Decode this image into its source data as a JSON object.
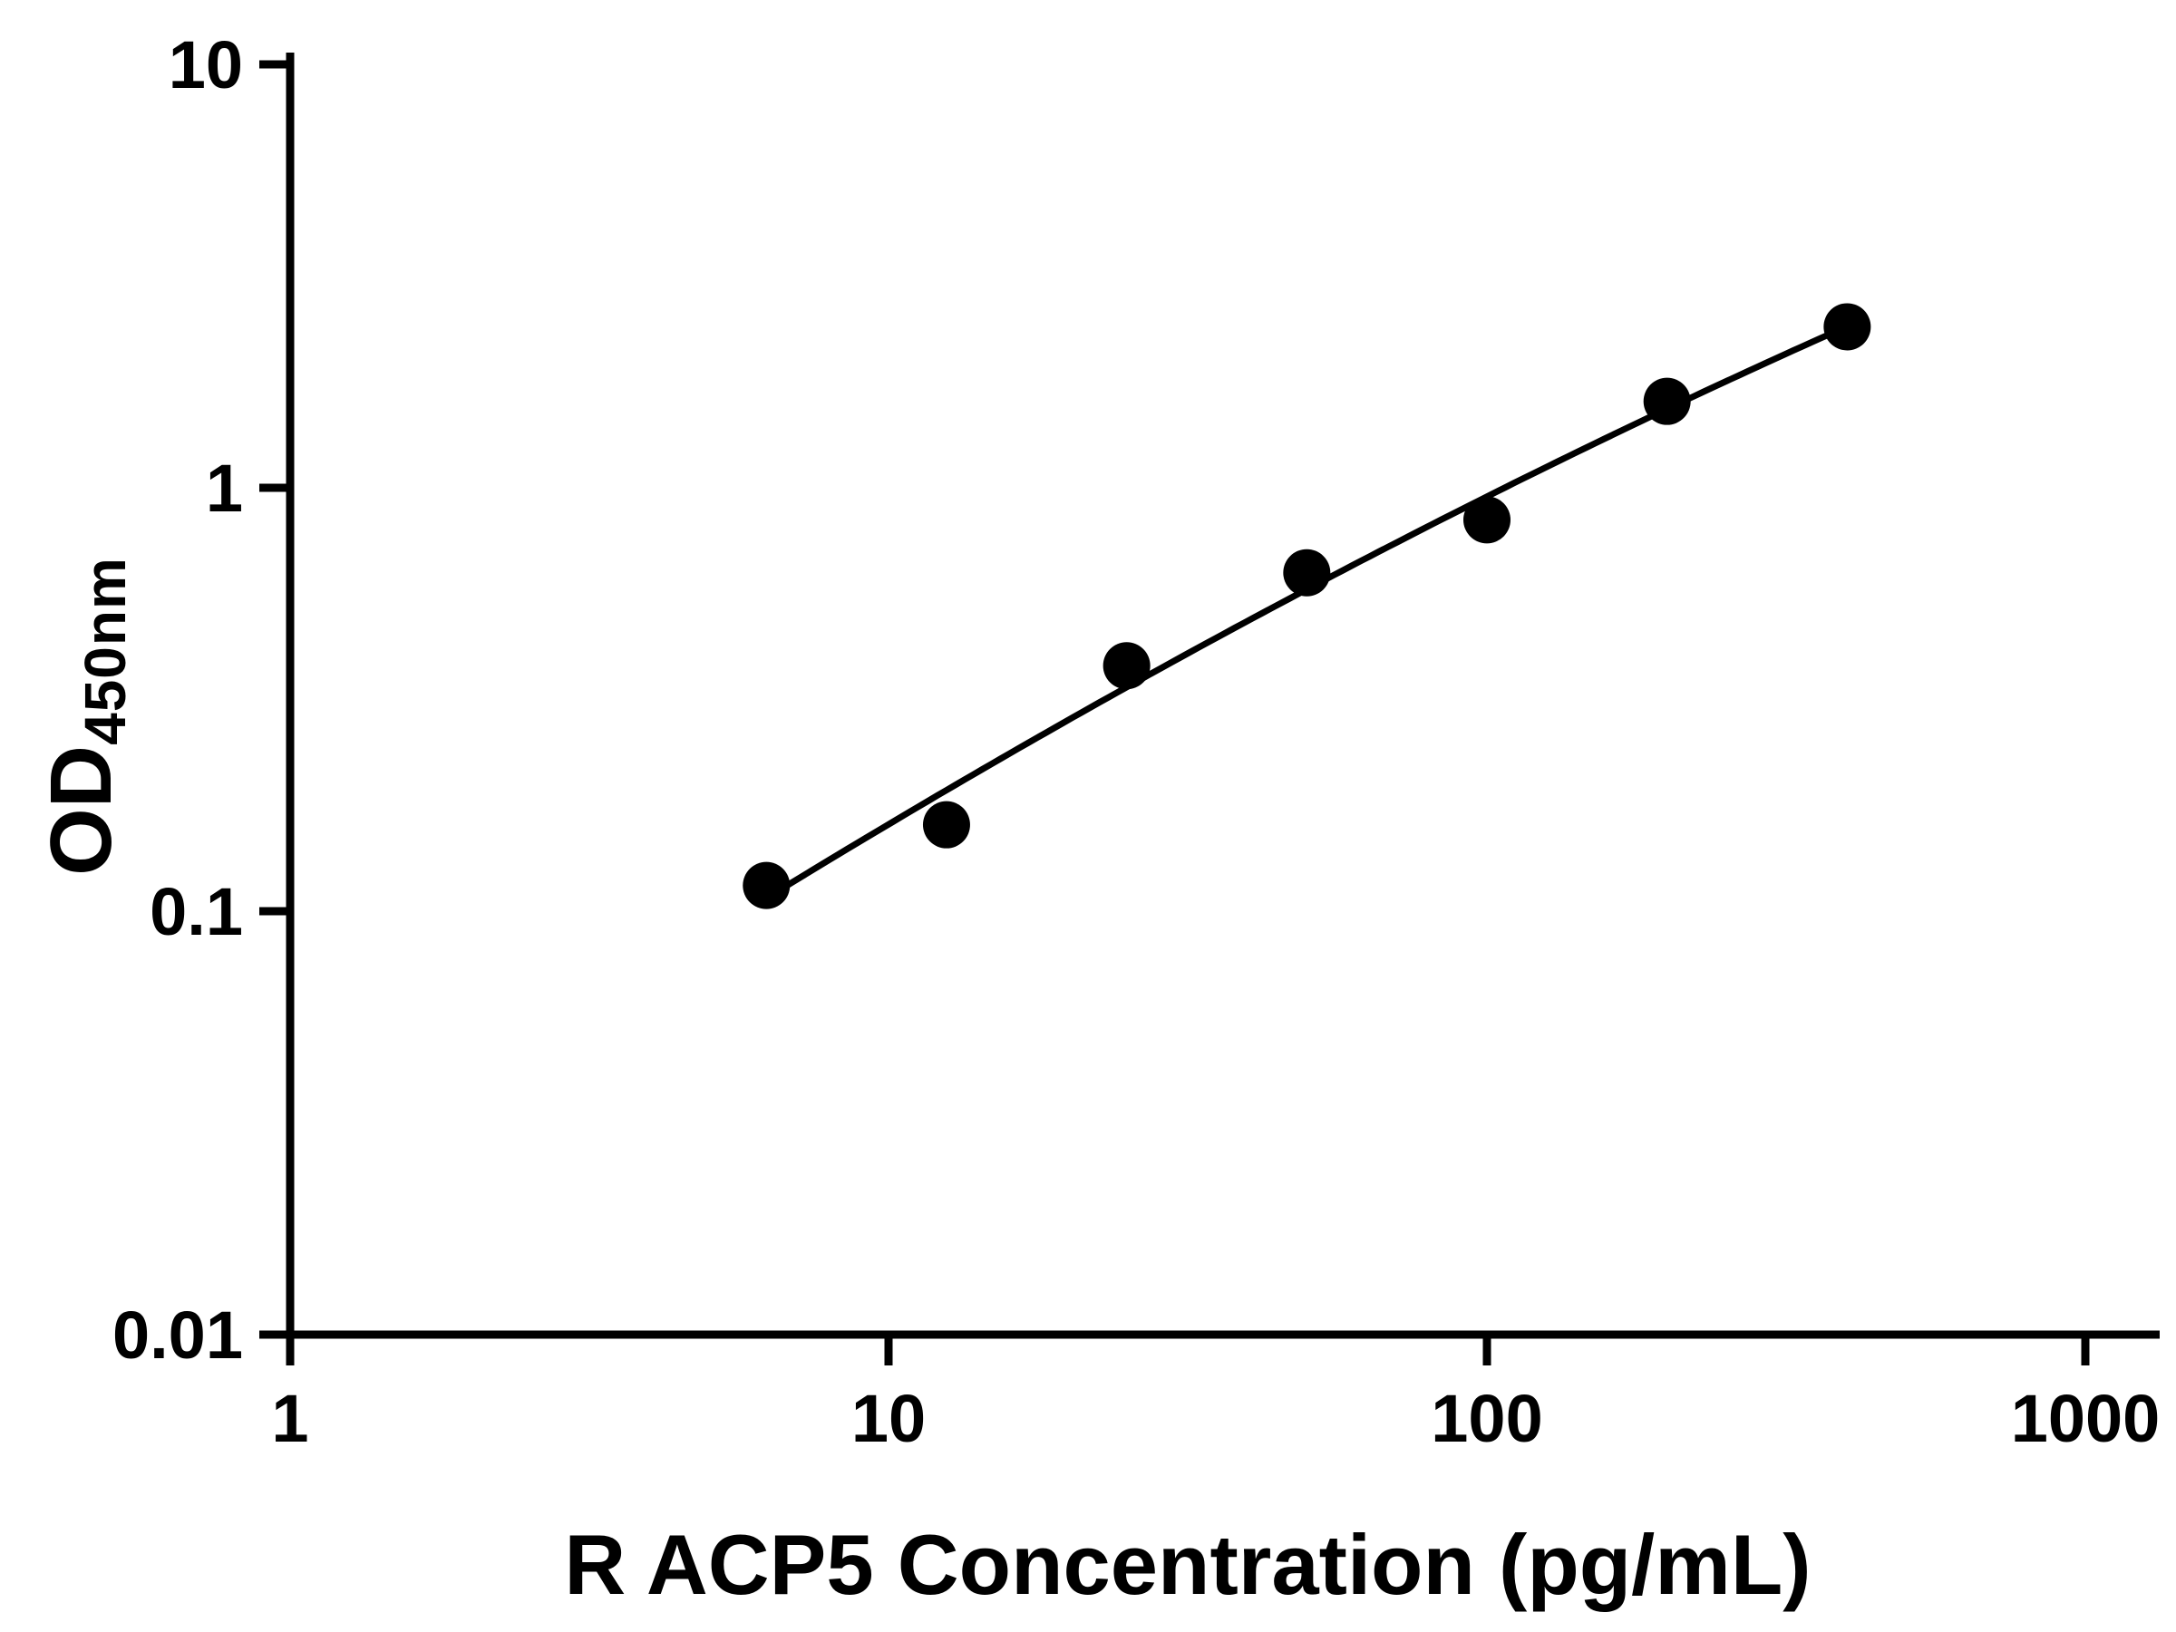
{
  "colors": {
    "background": "#ffffff",
    "axis": "#000000",
    "marker": "#000000",
    "fit_line": "#000000",
    "text": "#000000"
  },
  "chart_data": {
    "type": "scatter",
    "title": "",
    "xlabel": "R ACP5 Concentration (pg/mL)",
    "ylabel_main": "OD",
    "ylabel_sub": "450nm",
    "x_scale": "log",
    "y_scale": "log",
    "xlim": [
      1,
      1000
    ],
    "ylim": [
      0.01,
      10
    ],
    "x_ticks": [
      1,
      10,
      100,
      1000
    ],
    "x_tick_labels": [
      "1",
      "10",
      "100",
      "1000"
    ],
    "y_ticks": [
      0.01,
      0.1,
      1,
      10
    ],
    "y_tick_labels": [
      "0.01",
      "0.1",
      "1",
      "10"
    ],
    "grid": false,
    "legend": false,
    "series": [
      {
        "name": "standard-curve",
        "marker": "filled-circle",
        "fit": "smooth-curve",
        "x": [
          6.25,
          12.5,
          25,
          50,
          100,
          200,
          400
        ],
        "y": [
          0.115,
          0.16,
          0.38,
          0.63,
          0.84,
          1.6,
          2.4
        ]
      }
    ]
  }
}
